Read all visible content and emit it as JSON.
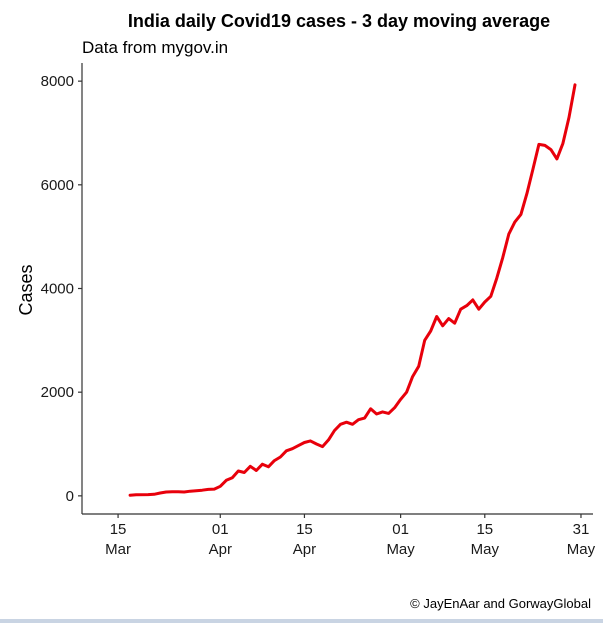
{
  "chart_data": {
    "type": "line",
    "title": "India daily Covid19 cases - 3 day moving average",
    "subtitle": "Data from mygov.in",
    "ylabel": "Cases",
    "xlabel": "",
    "caption": "© JayEnAar and GorwayGlobal",
    "line_color": "#e8000b",
    "ylim": [
      -350,
      8350
    ],
    "xlim": [
      "2020-03-09",
      "2020-06-02"
    ],
    "y_ticks": [
      0,
      2000,
      4000,
      6000,
      8000
    ],
    "x_ticks": [
      {
        "date": "2020-03-15",
        "label_day": "15",
        "label_month": "Mar"
      },
      {
        "date": "2020-04-01",
        "label_day": "01",
        "label_month": "Apr"
      },
      {
        "date": "2020-04-15",
        "label_day": "15",
        "label_month": "Apr"
      },
      {
        "date": "2020-05-01",
        "label_day": "01",
        "label_month": "May"
      },
      {
        "date": "2020-05-15",
        "label_day": "15",
        "label_month": "May"
      },
      {
        "date": "2020-05-31",
        "label_day": "31",
        "label_month": "May"
      }
    ],
    "grid": false,
    "series": [
      {
        "points": [
          [
            "2020-03-17",
            10
          ],
          [
            "2020-03-18",
            20
          ],
          [
            "2020-03-20",
            25
          ],
          [
            "2020-03-21",
            30
          ],
          [
            "2020-03-22",
            55
          ],
          [
            "2020-03-23",
            75
          ],
          [
            "2020-03-24",
            80
          ],
          [
            "2020-03-25",
            80
          ],
          [
            "2020-03-26",
            75
          ],
          [
            "2020-03-27",
            90
          ],
          [
            "2020-03-28",
            100
          ],
          [
            "2020-03-29",
            110
          ],
          [
            "2020-03-30",
            125
          ],
          [
            "2020-03-31",
            130
          ],
          [
            "2020-04-01",
            185
          ],
          [
            "2020-04-02",
            300
          ],
          [
            "2020-04-03",
            350
          ],
          [
            "2020-04-04",
            480
          ],
          [
            "2020-04-05",
            450
          ],
          [
            "2020-04-06",
            570
          ],
          [
            "2020-04-07",
            490
          ],
          [
            "2020-04-08",
            610
          ],
          [
            "2020-04-09",
            560
          ],
          [
            "2020-04-10",
            680
          ],
          [
            "2020-04-11",
            750
          ],
          [
            "2020-04-12",
            870
          ],
          [
            "2020-04-13",
            910
          ],
          [
            "2020-04-14",
            970
          ],
          [
            "2020-04-15",
            1030
          ],
          [
            "2020-04-16",
            1060
          ],
          [
            "2020-04-17",
            1000
          ],
          [
            "2020-04-18",
            950
          ],
          [
            "2020-04-19",
            1080
          ],
          [
            "2020-04-20",
            1260
          ],
          [
            "2020-04-21",
            1380
          ],
          [
            "2020-04-22",
            1420
          ],
          [
            "2020-04-23",
            1380
          ],
          [
            "2020-04-24",
            1470
          ],
          [
            "2020-04-25",
            1500
          ],
          [
            "2020-04-26",
            1680
          ],
          [
            "2020-04-27",
            1580
          ],
          [
            "2020-04-28",
            1620
          ],
          [
            "2020-04-29",
            1590
          ],
          [
            "2020-04-30",
            1700
          ],
          [
            "2020-05-01",
            1860
          ],
          [
            "2020-05-02",
            2000
          ],
          [
            "2020-05-03",
            2300
          ],
          [
            "2020-05-04",
            2500
          ],
          [
            "2020-05-05",
            3000
          ],
          [
            "2020-05-06",
            3180
          ],
          [
            "2020-05-07",
            3460
          ],
          [
            "2020-05-08",
            3280
          ],
          [
            "2020-05-09",
            3420
          ],
          [
            "2020-05-10",
            3330
          ],
          [
            "2020-05-11",
            3600
          ],
          [
            "2020-05-12",
            3670
          ],
          [
            "2020-05-13",
            3780
          ],
          [
            "2020-05-14",
            3600
          ],
          [
            "2020-05-15",
            3740
          ],
          [
            "2020-05-16",
            3850
          ],
          [
            "2020-05-17",
            4200
          ],
          [
            "2020-05-18",
            4600
          ],
          [
            "2020-05-19",
            5050
          ],
          [
            "2020-05-20",
            5280
          ],
          [
            "2020-05-21",
            5430
          ],
          [
            "2020-05-22",
            5830
          ],
          [
            "2020-05-23",
            6300
          ],
          [
            "2020-05-24",
            6780
          ],
          [
            "2020-05-25",
            6760
          ],
          [
            "2020-05-26",
            6680
          ],
          [
            "2020-05-27",
            6500
          ],
          [
            "2020-05-28",
            6800
          ],
          [
            "2020-05-29",
            7300
          ],
          [
            "2020-05-30",
            7930
          ]
        ]
      }
    ]
  }
}
